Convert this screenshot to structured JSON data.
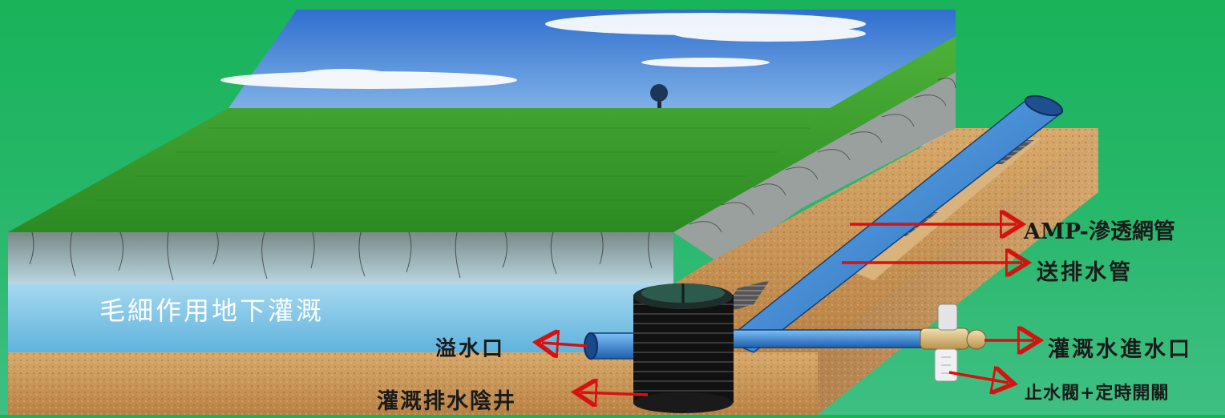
{
  "title_overlay": "毛細作用地下灌溉",
  "labels": {
    "amp_pipe": "AMP-滲透網管",
    "supply_drain_pipe": "送排水管",
    "irrigation_inlet": "灌溉水進水口",
    "valve_timer": "止水閥+定時開關",
    "overflow": "溢水口",
    "drain_well": "灌溉排水陰井"
  },
  "colors": {
    "background": "#1fb45e",
    "arrow": "#d81010",
    "pipe": "#2f7fd0",
    "grass": "#2f9a2a",
    "sky": "#3a86d6",
    "soil": "#c99a5c"
  }
}
